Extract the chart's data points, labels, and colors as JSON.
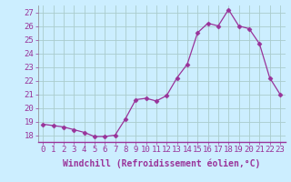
{
  "x": [
    0,
    1,
    2,
    3,
    4,
    5,
    6,
    7,
    8,
    9,
    10,
    11,
    12,
    13,
    14,
    15,
    16,
    17,
    18,
    19,
    20,
    21,
    22,
    23
  ],
  "y": [
    18.8,
    18.7,
    18.6,
    18.4,
    18.2,
    17.9,
    17.9,
    18.0,
    19.2,
    20.6,
    20.7,
    20.5,
    20.9,
    22.2,
    23.2,
    25.5,
    26.2,
    26.0,
    27.2,
    26.0,
    25.8,
    24.7,
    22.2,
    21.0
  ],
  "line_color": "#993399",
  "marker": "D",
  "marker_size": 2.5,
  "bg_color": "#cceeff",
  "grid_color": "#aacccc",
  "xlabel": "Windchill (Refroidissement éolien,°C)",
  "xlabel_fontsize": 7,
  "tick_fontsize": 6.5,
  "ylim": [
    17.5,
    27.5
  ],
  "yticks": [
    18,
    19,
    20,
    21,
    22,
    23,
    24,
    25,
    26,
    27
  ],
  "xlim": [
    -0.5,
    23.5
  ],
  "xticks": [
    0,
    1,
    2,
    3,
    4,
    5,
    6,
    7,
    8,
    9,
    10,
    11,
    12,
    13,
    14,
    15,
    16,
    17,
    18,
    19,
    20,
    21,
    22,
    23
  ]
}
